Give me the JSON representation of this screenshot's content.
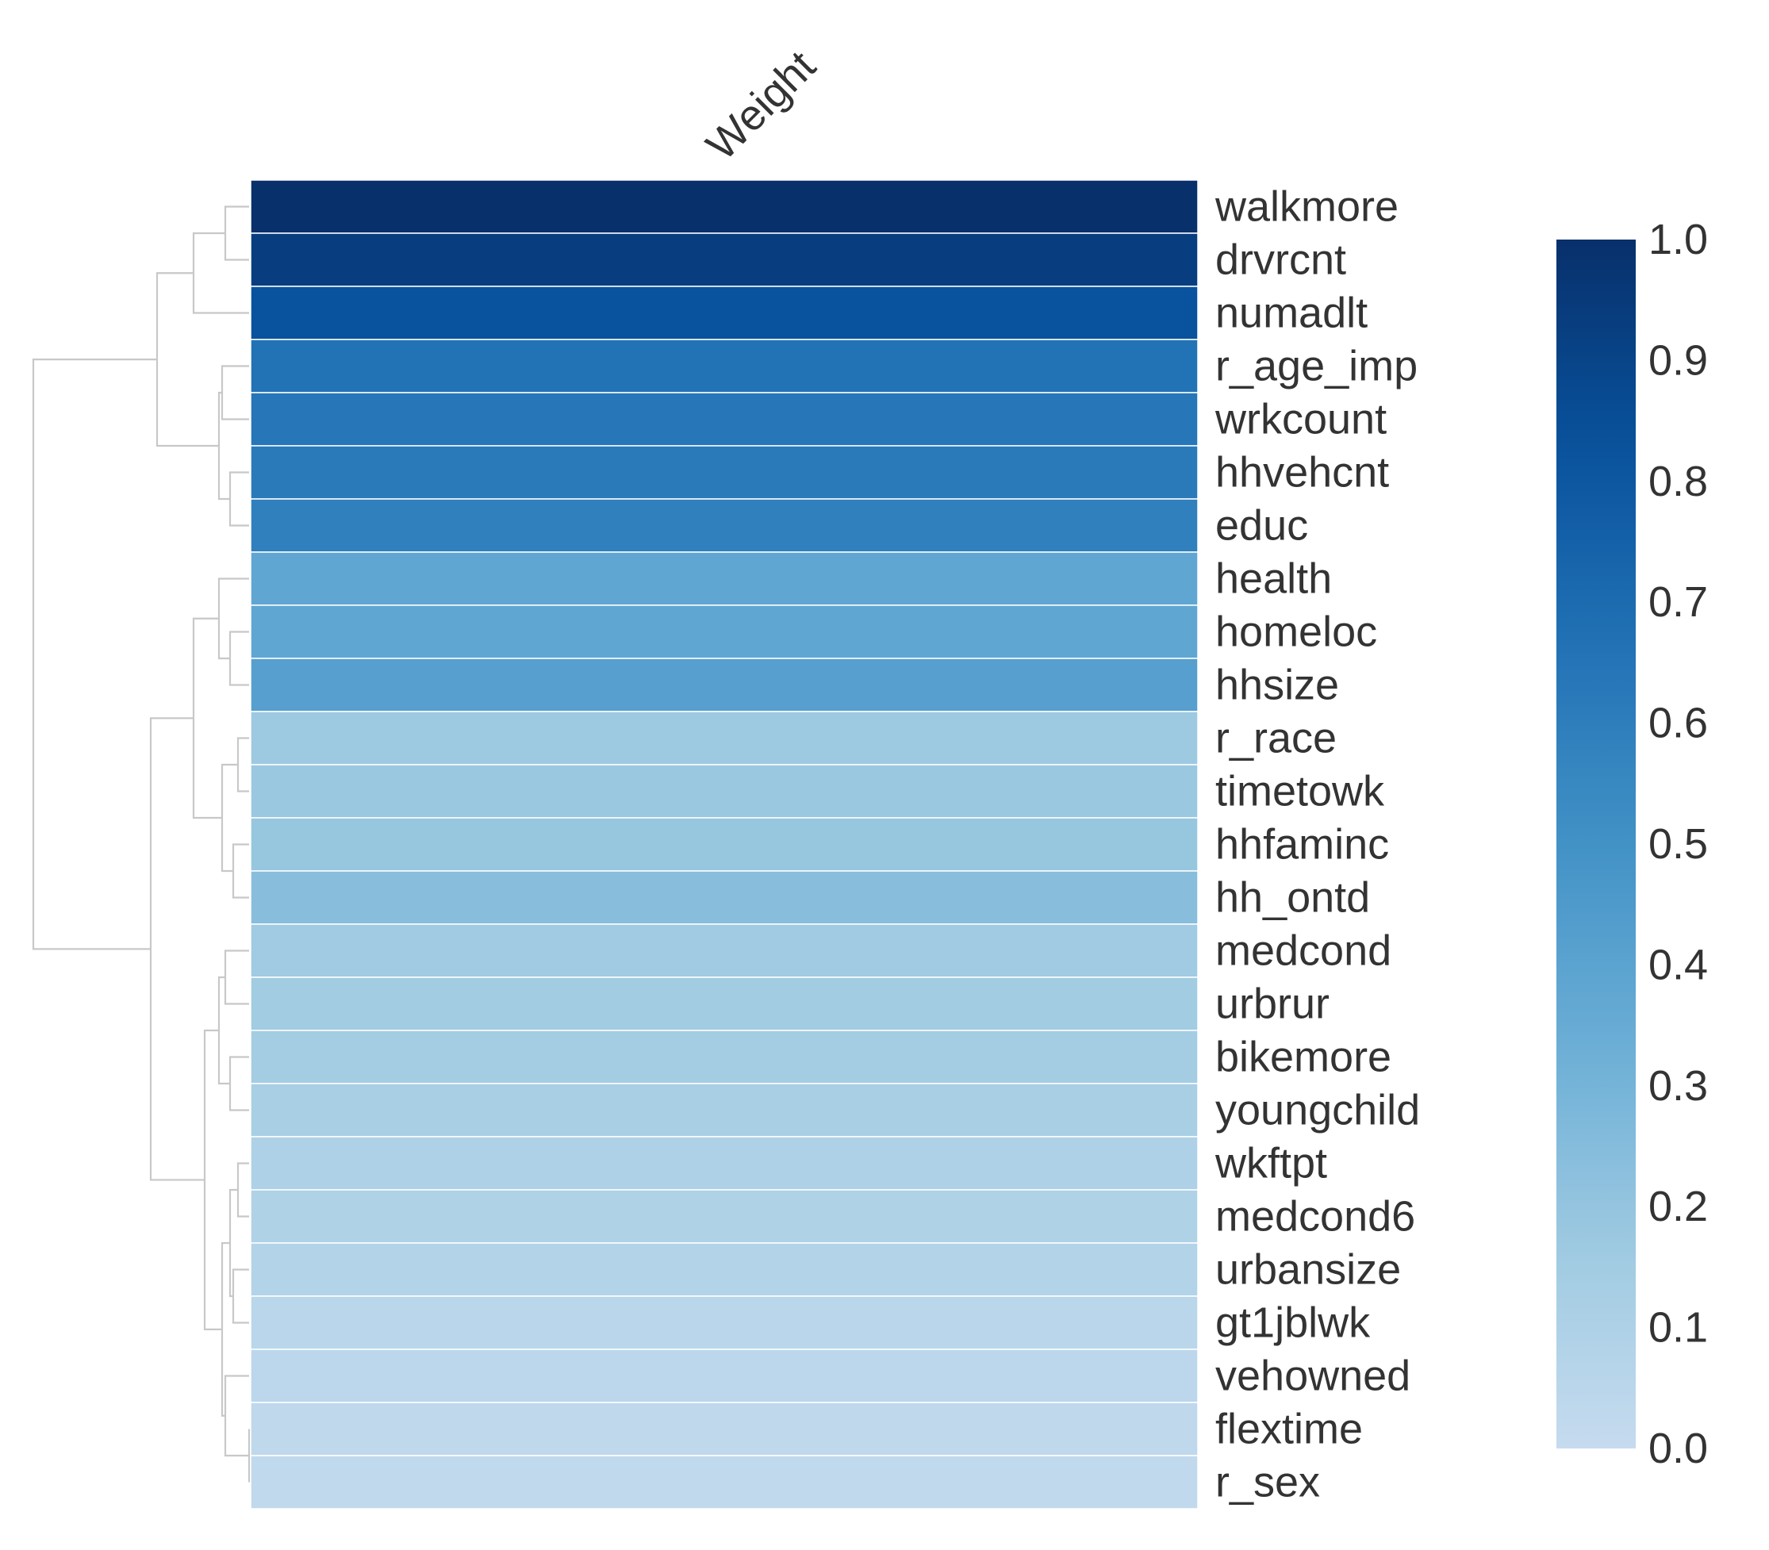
{
  "chart_data": {
    "type": "heatmap",
    "title": "",
    "columns": [
      "Weight"
    ],
    "rows": [
      "walkmore",
      "drvrcnt",
      "numadlt",
      "r_age_imp",
      "wrkcount",
      "hhvehcnt",
      "educ",
      "health",
      "homeloc",
      "hhsize",
      "r_race",
      "timetowk",
      "hhfaminc",
      "hh_ontd",
      "medcond",
      "urbrur",
      "bikemore",
      "youngchild",
      "wkftpt",
      "medcond6",
      "urbansize",
      "gt1jblwk",
      "vehowned",
      "flextime",
      "r_sex"
    ],
    "values": [
      1.0,
      0.93,
      0.83,
      0.66,
      0.64,
      0.62,
      0.59,
      0.38,
      0.38,
      0.42,
      0.17,
      0.18,
      0.19,
      0.24,
      0.16,
      0.15,
      0.14,
      0.12,
      0.1,
      0.09,
      0.08,
      0.05,
      0.04,
      0.03,
      0.02
    ],
    "colormap": "Blues",
    "colorbar": {
      "min": 0.0,
      "max": 1.0,
      "ticks": [
        "0.0",
        "0.1",
        "0.2",
        "0.3",
        "0.4",
        "0.5",
        "0.6",
        "0.7",
        "0.8",
        "0.9",
        "1.0"
      ]
    },
    "dendrogram": "rows, left side"
  }
}
